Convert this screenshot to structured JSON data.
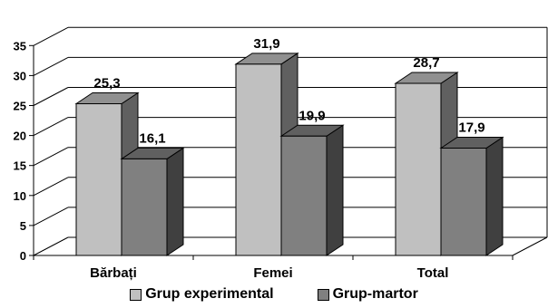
{
  "chart_data": {
    "type": "bar",
    "categories": [
      "Bărbați",
      "Femei",
      "Total"
    ],
    "series": [
      {
        "name": "Grup experimental",
        "values": [
          25.3,
          31.9,
          28.7
        ],
        "labels": [
          "25,3",
          "31,9",
          "28,7"
        ],
        "color": "#c0c0c0"
      },
      {
        "name": "Grup-martor",
        "values": [
          16.1,
          19.9,
          17.9
        ],
        "labels": [
          "16,1",
          "19,9",
          "17,9"
        ],
        "color": "#808080"
      }
    ],
    "yticks": [
      0,
      5,
      10,
      15,
      20,
      25,
      30,
      35
    ],
    "ylim": [
      0,
      35
    ],
    "title": "",
    "xlabel": "",
    "ylabel": "",
    "grid": true,
    "legend_position": "bottom",
    "style": "3d-column"
  }
}
